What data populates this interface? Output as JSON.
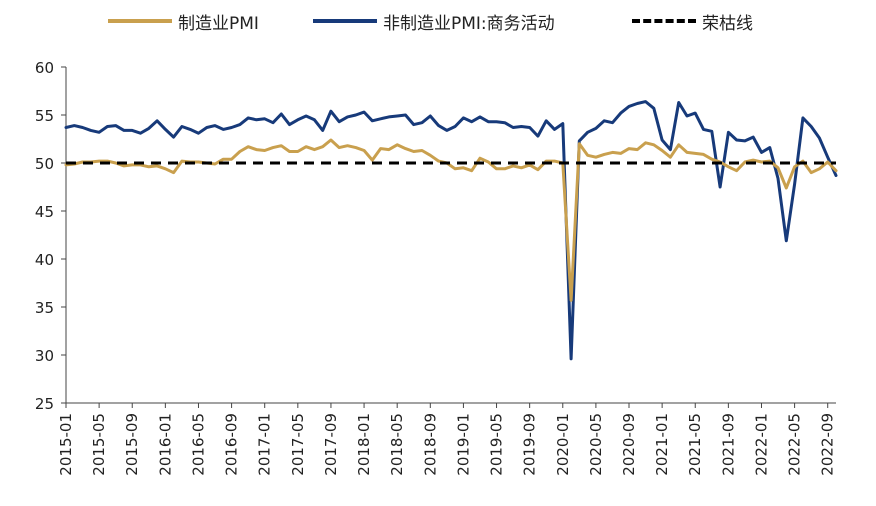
{
  "chart_data": {
    "type": "line",
    "title": "",
    "xlabel": "",
    "ylabel": "",
    "ylim": [
      25,
      60
    ],
    "yticks": [
      25,
      30,
      35,
      40,
      45,
      50,
      55,
      60
    ],
    "xtick_labels": [
      "2015-01",
      "2015-05",
      "2015-09",
      "2016-01",
      "2016-05",
      "2016-09",
      "2017-01",
      "2017-05",
      "2017-09",
      "2018-01",
      "2018-05",
      "2018-09",
      "2019-01",
      "2019-05",
      "2019-09",
      "2020-01",
      "2020-05",
      "2020-09",
      "2021-01",
      "2021-05",
      "2021-09",
      "2022-01",
      "2022-05",
      "2022-09"
    ],
    "x_start": "2015-01",
    "x_end": "2022-10",
    "legend_position": "top",
    "series": [
      {
        "name": "制造业PMI",
        "color": "#C9A04E",
        "style": "solid",
        "values": [
          49.8,
          49.9,
          50.1,
          50.1,
          50.2,
          50.2,
          50.0,
          49.7,
          49.8,
          49.8,
          49.6,
          49.7,
          49.4,
          49.0,
          50.2,
          50.1,
          50.1,
          50.0,
          49.9,
          50.4,
          50.4,
          51.2,
          51.7,
          51.4,
          51.3,
          51.6,
          51.8,
          51.2,
          51.2,
          51.7,
          51.4,
          51.7,
          52.4,
          51.6,
          51.8,
          51.6,
          51.3,
          50.3,
          51.5,
          51.4,
          51.9,
          51.5,
          51.2,
          51.3,
          50.8,
          50.2,
          50.0,
          49.4,
          49.5,
          49.2,
          50.5,
          50.1,
          49.4,
          49.4,
          49.7,
          49.5,
          49.8,
          49.3,
          50.2,
          50.2,
          50.0,
          35.7,
          52.0,
          50.8,
          50.6,
          50.9,
          51.1,
          51.0,
          51.5,
          51.4,
          52.1,
          51.9,
          51.3,
          50.6,
          51.9,
          51.1,
          51.0,
          50.9,
          50.4,
          50.1,
          49.6,
          49.2,
          50.1,
          50.3,
          50.1,
          50.2,
          49.5,
          47.4,
          49.6,
          50.2,
          49.0,
          49.4,
          50.1,
          49.2
        ]
      },
      {
        "name": "非制造业PMI:商务活动",
        "color": "#173A7A",
        "style": "solid",
        "values": [
          53.7,
          53.9,
          53.7,
          53.4,
          53.2,
          53.8,
          53.9,
          53.4,
          53.4,
          53.1,
          53.6,
          54.4,
          53.5,
          52.7,
          53.8,
          53.5,
          53.1,
          53.7,
          53.9,
          53.5,
          53.7,
          54.0,
          54.7,
          54.5,
          54.6,
          54.2,
          55.1,
          54.0,
          54.5,
          54.9,
          54.5,
          53.4,
          55.4,
          54.3,
          54.8,
          55.0,
          55.3,
          54.4,
          54.6,
          54.8,
          54.9,
          55.0,
          54.0,
          54.2,
          54.9,
          53.9,
          53.4,
          53.8,
          54.7,
          54.3,
          54.8,
          54.3,
          54.3,
          54.2,
          53.7,
          53.8,
          53.7,
          52.8,
          54.4,
          53.5,
          54.1,
          29.6,
          52.3,
          53.2,
          53.6,
          54.4,
          54.2,
          55.2,
          55.9,
          56.2,
          56.4,
          55.7,
          52.4,
          51.4,
          56.3,
          54.9,
          55.2,
          53.5,
          53.3,
          47.5,
          53.2,
          52.4,
          52.3,
          52.7,
          51.1,
          51.6,
          48.4,
          41.9,
          47.8,
          54.7,
          53.8,
          52.6,
          50.6,
          48.7
        ]
      },
      {
        "name": "荣枯线",
        "color": "#000000",
        "style": "dashed",
        "values": [
          50
        ]
      }
    ]
  }
}
